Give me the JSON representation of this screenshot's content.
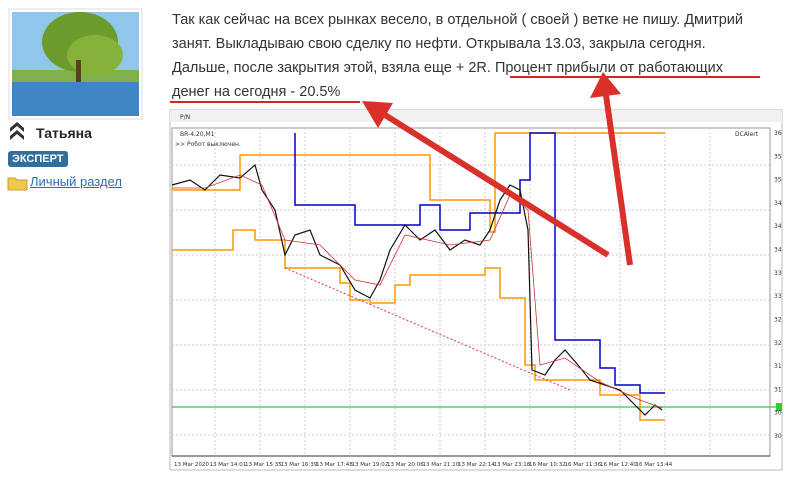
{
  "user": {
    "name": "Татьяна",
    "badge": "ЭКСПЕРТ",
    "link": "Личный раздел"
  },
  "post": {
    "lines": [
      "Так как сейчас на всех рынках весело, в отдельной ( своей ) ветке не пишу. Дмитрий",
      "занят. Выкладываю свою сделку по нефти. Открывала 13.03, закрыла сегодня.",
      "Дальше, после закрытия этой, взяла еще + 2R."
    ],
    "highlight": [
      "Процент прибыли от работающих",
      "денег на сегодня - 20.5%"
    ]
  },
  "chart_image": {
    "tab": "P/N",
    "symbol": "BR-4.20,M1",
    "status": ">> Робот выключен.",
    "indicator": "DCAlert",
    "x_labels": [
      "13 Mar 2020",
      "13 Mar 14:01",
      "13 Mar 15:35",
      "13 Mar 16:39",
      "13 Mar 17:48",
      "13 Mar 19:02",
      "13 Mar 20:06",
      "13 Mar 21:10",
      "13 Mar 22:14",
      "13 Mar 23:18",
      "16 Mar 10:32",
      "16 Mar 11:36",
      "16 Mar 12:40",
      "16 Mar 13:44"
    ],
    "y_labels": [
      "36",
      "35",
      "35",
      "34",
      "34",
      "34",
      "33",
      "33",
      "32",
      "32",
      "31",
      "31",
      "30",
      "30"
    ]
  }
}
